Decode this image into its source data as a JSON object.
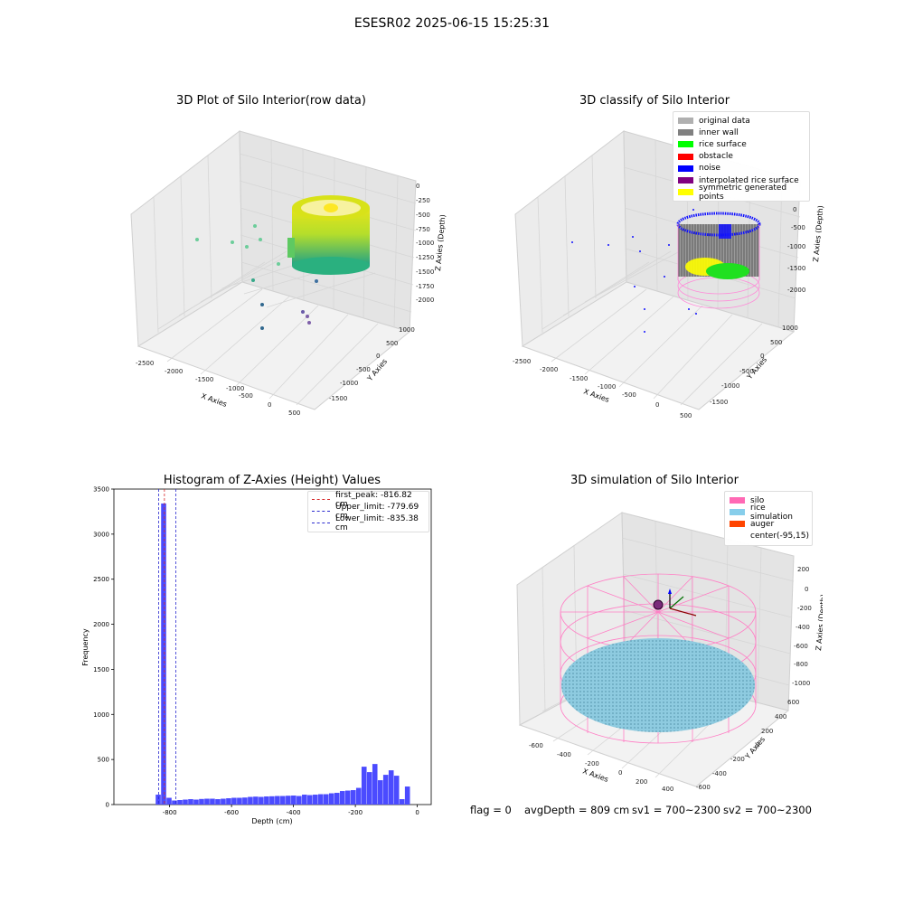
{
  "suptitle": "ESESR02 2025-06-15 15:25:31",
  "footer": {
    "flag": "flag = 0",
    "avg": "avgDepth = 809 cm",
    "sv1": "sv1 = 700~2300",
    "sv2": "sv2 = 700~2300"
  },
  "chart_data": [
    {
      "type": "scatter",
      "title": "3D Plot of Silo Interior(row data)",
      "xlabel": "X Axies",
      "ylabel": "Y Axies",
      "zlabel": "Z Axies (Depth)",
      "x_ticks": [
        "-2500",
        "-2000",
        "-1500",
        "-1000",
        "-500",
        "0",
        "500"
      ],
      "y_ticks": [
        "1000",
        "500",
        "0",
        "-500",
        "-1000",
        "-1500"
      ],
      "z_ticks": [
        "0",
        "-250",
        "-500",
        "-750",
        "-1000",
        "-1250",
        "-1500",
        "-1750",
        "-2000"
      ],
      "colormap": "viridis"
    },
    {
      "type": "scatter",
      "title": "3D classify of Silo Interior",
      "xlabel": "X Axies",
      "ylabel": "Y Axies",
      "zlabel": "Z Axies (Depth)",
      "x_ticks": [
        "-2500",
        "-2000",
        "-1500",
        "-1000",
        "-500",
        "0",
        "500"
      ],
      "y_ticks": [
        "1000",
        "500",
        "0",
        "-500",
        "-1000",
        "-1500"
      ],
      "z_ticks": [
        "0",
        "-500",
        "-1000",
        "-1500",
        "-2000"
      ],
      "legend": [
        {
          "label": "original data",
          "color": "#b0b0b0"
        },
        {
          "label": "inner wall",
          "color": "#808080"
        },
        {
          "label": "rice surface",
          "color": "#00ff00"
        },
        {
          "label": "obstacle",
          "color": "#ff0000"
        },
        {
          "label": "noise",
          "color": "#0000ff"
        },
        {
          "label": "interpolated rice surface",
          "color": "#800080"
        },
        {
          "label": "symmetric generated points",
          "color": "#ffff00"
        }
      ]
    },
    {
      "type": "bar",
      "title": "Histogram of Z-Axies (Height) Values",
      "xlabel": "Depth (cm)",
      "ylabel": "Frequency",
      "xlim": [
        -980,
        45
      ],
      "ylim": [
        0,
        3500
      ],
      "x_ticks": [
        -800,
        -600,
        -400,
        -200,
        0
      ],
      "y_ticks": [
        0,
        500,
        1000,
        1500,
        2000,
        2500,
        3000,
        3500
      ],
      "bin_width": 17.5,
      "bins_start": [
        -845,
        -827.5,
        -810,
        -792.5,
        -775,
        -757.5,
        -740,
        -722.5,
        -705,
        -687.5,
        -670,
        -652.5,
        -635,
        -617.5,
        -600,
        -582.5,
        -565,
        -547.5,
        -530,
        -512.5,
        -495,
        -477.5,
        -460,
        -442.5,
        -425,
        -407.5,
        -390,
        -372.5,
        -355,
        -337.5,
        -320,
        -302.5,
        -285,
        -267.5,
        -250,
        -232.5,
        -215,
        -197.5,
        -180,
        -162.5,
        -145,
        -127.5,
        -110,
        -92.5,
        -75,
        -57.5,
        -40,
        -22.5,
        -5
      ],
      "values": [
        110,
        3340,
        75,
        45,
        50,
        55,
        60,
        55,
        62,
        65,
        65,
        60,
        65,
        70,
        75,
        75,
        78,
        85,
        88,
        85,
        90,
        92,
        95,
        95,
        98,
        100,
        95,
        110,
        105,
        110,
        115,
        115,
        125,
        130,
        150,
        155,
        160,
        185,
        420,
        360,
        450,
        270,
        330,
        380,
        320,
        60,
        200,
        0,
        0
      ],
      "bar_color": "#4b4bff",
      "vlines": [
        {
          "label": "first_peak: -816.82 cm",
          "x": -816.82,
          "color": "#d62728"
        },
        {
          "label": "Upper_limit: -779.69 cm",
          "x": -779.69,
          "color": "#2b2bd0"
        },
        {
          "label": "Lower_limit: -835.38 cm",
          "x": -835.38,
          "color": "#2b2bd0"
        }
      ]
    },
    {
      "type": "scatter",
      "title": "3D simulation of Silo Interior",
      "xlabel": "X Axies",
      "ylabel": "Y Axies",
      "zlabel": "Z Axies (Depth)",
      "x_ticks": [
        "-600",
        "-400",
        "-200",
        "0",
        "200",
        "400"
      ],
      "y_ticks": [
        "600",
        "400",
        "200",
        "0",
        "-200",
        "-400",
        "-600"
      ],
      "z_ticks": [
        "200",
        "0",
        "-200",
        "-400",
        "-600",
        "-800",
        "-1000"
      ],
      "legend": [
        {
          "label": "silo",
          "color": "#ff69b4"
        },
        {
          "label": "rice simulation",
          "color": "#87ceeb"
        },
        {
          "label": "auger",
          "color": "#ff4500"
        },
        {
          "label": "center(-95,15)",
          "color": "#ffffff"
        }
      ]
    }
  ]
}
